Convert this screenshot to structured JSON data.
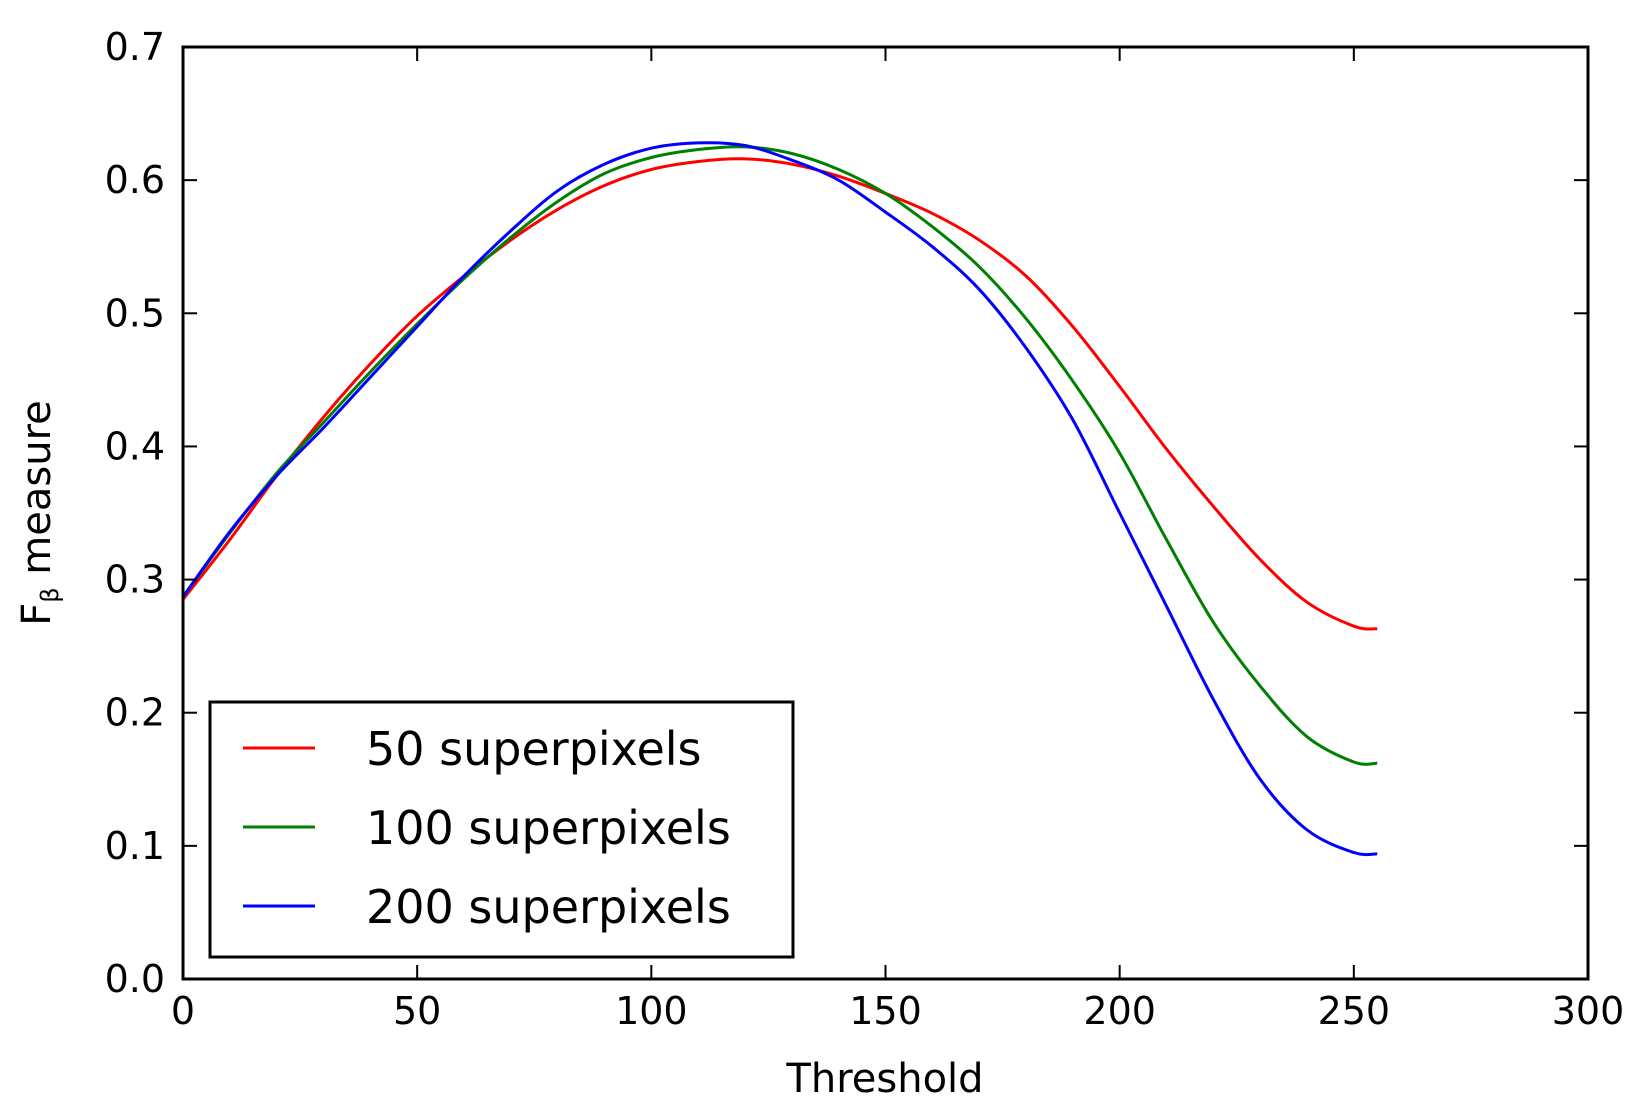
{
  "chart_data": {
    "type": "line",
    "title": "",
    "xlabel": "Threshold",
    "ylabel_main": "F",
    "ylabel_sub": "β",
    "ylabel_rest": " measure",
    "xlim": [
      0,
      300
    ],
    "ylim": [
      0.0,
      0.7
    ],
    "xticks": [
      0,
      50,
      100,
      150,
      200,
      250,
      300
    ],
    "xtick_labels": [
      "0",
      "50",
      "100",
      "150",
      "200",
      "250",
      "300"
    ],
    "yticks": [
      0.0,
      0.1,
      0.2,
      0.3,
      0.4,
      0.5,
      0.6,
      0.7
    ],
    "ytick_labels": [
      "0.0",
      "0.1",
      "0.2",
      "0.3",
      "0.4",
      "0.5",
      "0.6",
      "0.7"
    ],
    "grid": false,
    "legend_position": "bottom-left",
    "x": [
      0,
      10,
      20,
      30,
      40,
      50,
      60,
      70,
      80,
      90,
      100,
      110,
      120,
      130,
      140,
      150,
      160,
      170,
      180,
      190,
      200,
      210,
      220,
      230,
      240,
      250,
      255
    ],
    "series": [
      {
        "name": "50 superpixels",
        "color": "#ff0000",
        "values": [
          0.285,
          0.33,
          0.378,
          0.422,
          0.462,
          0.498,
          0.528,
          0.555,
          0.578,
          0.596,
          0.608,
          0.614,
          0.616,
          0.612,
          0.603,
          0.59,
          0.575,
          0.555,
          0.528,
          0.49,
          0.445,
          0.398,
          0.355,
          0.315,
          0.283,
          0.265,
          0.263
        ]
      },
      {
        "name": "100 superpixels",
        "color": "#008000",
        "values": [
          0.287,
          0.335,
          0.38,
          0.418,
          0.456,
          0.492,
          0.526,
          0.557,
          0.584,
          0.605,
          0.617,
          0.623,
          0.625,
          0.62,
          0.608,
          0.59,
          0.565,
          0.535,
          0.496,
          0.449,
          0.395,
          0.33,
          0.268,
          0.22,
          0.182,
          0.163,
          0.162
        ]
      },
      {
        "name": "200 superpixels",
        "color": "#0000ff",
        "values": [
          0.287,
          0.336,
          0.378,
          0.414,
          0.452,
          0.49,
          0.528,
          0.562,
          0.592,
          0.612,
          0.624,
          0.628,
          0.626,
          0.615,
          0.6,
          0.576,
          0.55,
          0.518,
          0.474,
          0.42,
          0.35,
          0.28,
          0.21,
          0.15,
          0.112,
          0.095,
          0.094
        ]
      }
    ]
  }
}
